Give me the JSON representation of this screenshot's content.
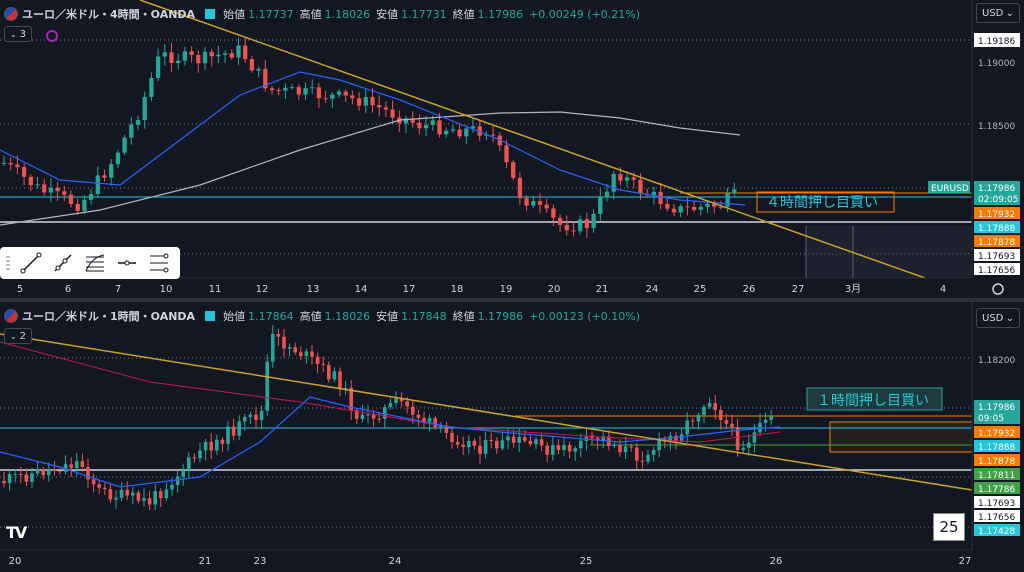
{
  "top": {
    "symbol": "ユーロ／米ドル・4時間・OANDA",
    "o_label": "始値",
    "o": "1.17737",
    "h_label": "高値",
    "h": "1.18026",
    "l_label": "安値",
    "l": "1.17731",
    "c_label": "終値",
    "c": "1.17986",
    "change": "+0.00249 (+0.21%)",
    "indicator_count": "3",
    "currency": "USD",
    "annotation": "４時間押し目買い",
    "axis_labels": [
      "1.19186",
      "1.19000",
      "1.18500"
    ],
    "price_badges": [
      {
        "text": "1.17986",
        "sub": "02:09:05",
        "bg": "#26a69a",
        "fg": "#ffffff"
      },
      {
        "text": "1.17932",
        "bg": "#f57c00",
        "fg": "#ffffff"
      },
      {
        "text": "1.17888",
        "bg": "#26c6da",
        "fg": "#ffffff"
      },
      {
        "text": "1.17878",
        "bg": "#f57c00",
        "fg": "#ffffff"
      },
      {
        "text": "1.17693",
        "bg": "#ffffff",
        "fg": "#131722"
      },
      {
        "text": "1.17656",
        "bg": "#ffffff",
        "fg": "#131722"
      }
    ],
    "symbol_badge": "EURUSD",
    "time_labels": [
      "5",
      "6",
      "7",
      "10",
      "11",
      "12",
      "13",
      "14",
      "17",
      "18",
      "19",
      "20",
      "21",
      "24",
      "25",
      "26",
      "27",
      "3月",
      "4"
    ],
    "icons": [
      "trendline-icon",
      "ray-icon",
      "fib-icon",
      "horizontal-line-icon",
      "parallel-channel-icon"
    ]
  },
  "bottom": {
    "symbol": "ユーロ／米ドル・1時間・OANDA",
    "o_label": "始値",
    "o": "1.17864",
    "h_label": "高値",
    "h": "1.18026",
    "l_label": "安値",
    "l": "1.17848",
    "c_label": "終値",
    "c": "1.17986",
    "change": "+0.00123 (+0.10%)",
    "indicator_count": "2",
    "currency": "USD",
    "annotation": "１時間押し目買い",
    "axis_labels": [
      "1.18200"
    ],
    "price_badges": [
      {
        "text": "1.17986",
        "sub": "09:05",
        "bg": "#26a69a",
        "fg": "#ffffff"
      },
      {
        "text": "1.17932",
        "bg": "#f57c00",
        "fg": "#ffffff"
      },
      {
        "text": "1.17888",
        "bg": "#26c6da",
        "fg": "#ffffff"
      },
      {
        "text": "1.17878",
        "bg": "#f57c00",
        "fg": "#ffffff"
      },
      {
        "text": "1.17811",
        "bg": "#43a047",
        "fg": "#ffffff"
      },
      {
        "text": "1.17786",
        "bg": "#43a047",
        "fg": "#ffffff"
      },
      {
        "text": "1.17693",
        "bg": "#ffffff",
        "fg": "#131722"
      },
      {
        "text": "1.17656",
        "bg": "#ffffff",
        "fg": "#131722"
      },
      {
        "text": "1.17428",
        "bg": "#26c6da",
        "fg": "#ffffff"
      }
    ],
    "time_labels": [
      "20",
      "21",
      "23",
      "24",
      "25",
      "26",
      "27"
    ],
    "corner_number": "25",
    "logo": "TV"
  },
  "colors": {
    "up": "#26a69a",
    "down": "#ef5350",
    "bg": "#131722",
    "ma_blue": "#2962ff",
    "ma_gray": "#b2b5be",
    "trend": "#c9a227",
    "ma_red": "#c2185b"
  }
}
